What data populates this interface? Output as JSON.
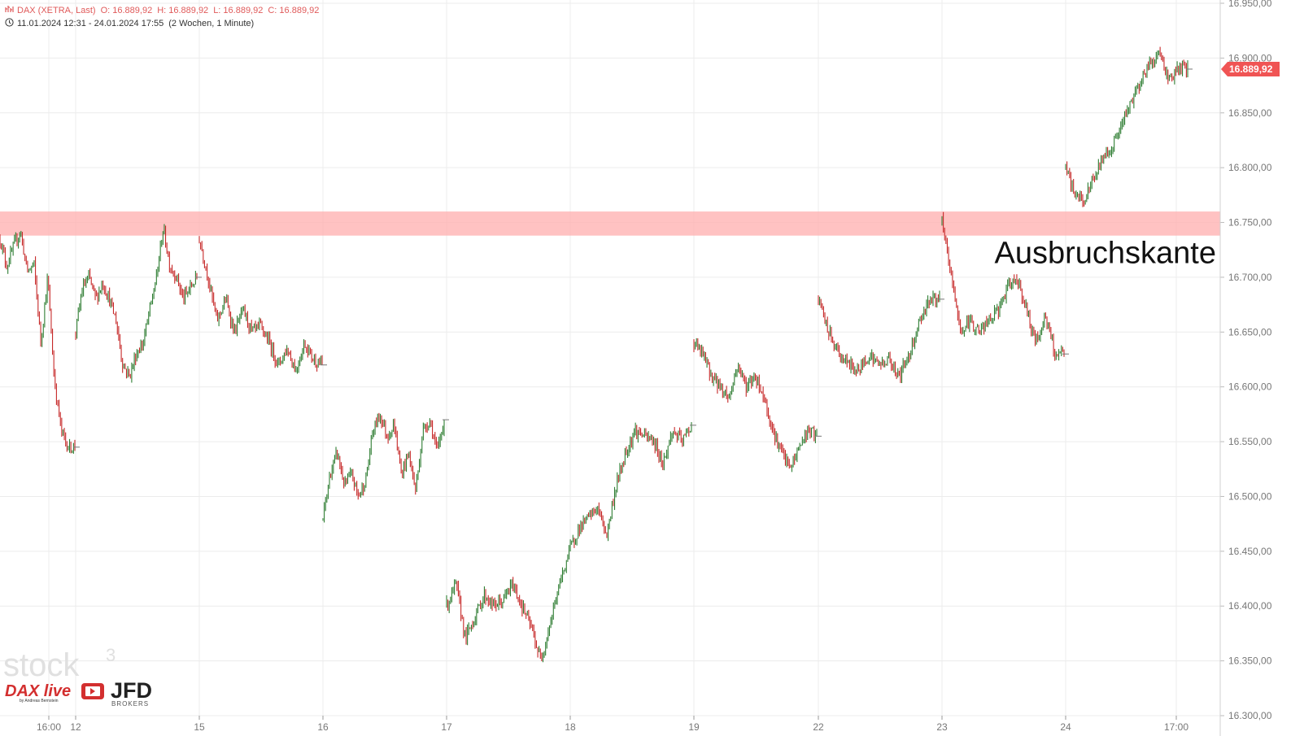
{
  "header": {
    "instrument": "DAX (XETRA, Last)",
    "open": "O: 16.889,92",
    "high": "H: 16.889,92",
    "low": "L: 16.889,92",
    "close": "C: 16.889,92",
    "range": "11.01.2024 12:31 - 24.01.2024 17:55",
    "period": "(2 Wochen, 1 Minute)"
  },
  "logos": {
    "stock3": "stock3",
    "dax_live": "DAX live",
    "dax_live_by": "by Andreas Bernstein",
    "jfd": "JFD",
    "jfd_sub": "BROKERS"
  },
  "colors": {
    "up": "#2e7d32",
    "down": "#c62828",
    "zone": "#ffb3b3",
    "last_price": "#f05454",
    "grid": "#ececec"
  },
  "chart_data": {
    "type": "line",
    "title": "",
    "ylim": [
      16300,
      16950
    ],
    "y_ticks": [
      "16.300,00",
      "16.350,00",
      "16.400,00",
      "16.450,00",
      "16.500,00",
      "16.550,00",
      "16.600,00",
      "16.650,00",
      "16.700,00",
      "16.750,00",
      "16.800,00",
      "16.850,00",
      "16.900,00",
      "16.950,00"
    ],
    "x_ticks": [
      "16:00",
      "12",
      "15",
      "16",
      "17",
      "18",
      "19",
      "22",
      "23",
      "24",
      "17:00"
    ],
    "zone": {
      "from": 16738,
      "to": 16760,
      "label": "Ausbruchskante"
    },
    "last_price": {
      "value": 16889.92,
      "label": "16.889,92"
    },
    "series": [
      {
        "session": "11",
        "points": [
          16735,
          16710,
          16728,
          16742,
          16705,
          16712,
          16640,
          16700,
          16605,
          16560,
          16545,
          16545
        ]
      },
      {
        "session": "12",
        "points": [
          16650,
          16690,
          16700,
          16680,
          16695,
          16680,
          16660,
          16620,
          16610,
          16630,
          16640,
          16670,
          16700,
          16745,
          16710,
          16700,
          16680,
          16690,
          16700
        ]
      },
      {
        "session": "15",
        "points": [
          16735,
          16700,
          16660,
          16680,
          16650,
          16670,
          16650,
          16655,
          16640,
          16620,
          16635,
          16615,
          16640,
          16625,
          16620
        ]
      },
      {
        "session": "16",
        "points": [
          16480,
          16520,
          16540,
          16510,
          16520,
          16500,
          16515,
          16560,
          16575,
          16555,
          16565,
          16520,
          16540,
          16505,
          16560,
          16570,
          16540,
          16570
        ]
      },
      {
        "session": "17",
        "points": [
          16400,
          16420,
          16370,
          16390,
          16410,
          16400,
          16405,
          16420,
          16400,
          16380,
          16350,
          16385,
          16420,
          16450,
          16470,
          16480,
          16490,
          16465,
          16510,
          16540,
          16560,
          16555,
          16550,
          16530,
          16560,
          16550,
          16565
        ]
      },
      {
        "session": "19",
        "points": [
          16640,
          16630,
          16610,
          16600,
          16590,
          16620,
          16600,
          16610,
          16590,
          16560,
          16540,
          16525,
          16545,
          16560,
          16555
        ]
      },
      {
        "session": "22",
        "points": [
          16680,
          16650,
          16630,
          16620,
          16615,
          16630,
          16620,
          16625,
          16610,
          16630,
          16660,
          16680,
          16680
        ]
      },
      {
        "session": "23",
        "points": [
          16750,
          16700,
          16650,
          16660,
          16650,
          16660,
          16670,
          16690,
          16700,
          16670,
          16640,
          16665,
          16630,
          16630
        ]
      },
      {
        "session": "24",
        "points": [
          16800,
          16775,
          16770,
          16790,
          16810,
          16820,
          16840,
          16860,
          16880,
          16895,
          16905,
          16880,
          16890,
          16889.92
        ]
      }
    ]
  }
}
